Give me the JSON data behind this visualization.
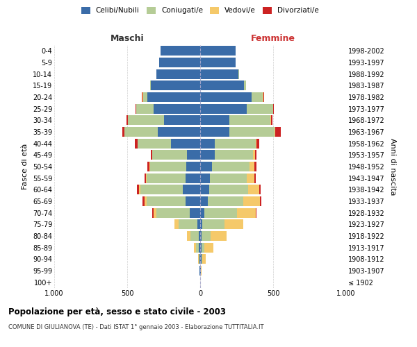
{
  "age_groups": [
    "100+",
    "95-99",
    "90-94",
    "85-89",
    "80-84",
    "75-79",
    "70-74",
    "65-69",
    "60-64",
    "55-59",
    "50-54",
    "45-49",
    "40-44",
    "35-39",
    "30-34",
    "25-29",
    "20-24",
    "15-19",
    "10-14",
    "5-9",
    "0-4"
  ],
  "birth_years": [
    "≤ 1902",
    "1903-1907",
    "1908-1912",
    "1913-1917",
    "1918-1922",
    "1923-1927",
    "1928-1932",
    "1933-1937",
    "1938-1942",
    "1943-1947",
    "1948-1952",
    "1953-1957",
    "1958-1962",
    "1963-1967",
    "1968-1972",
    "1973-1977",
    "1978-1982",
    "1983-1987",
    "1988-1992",
    "1993-1997",
    "1998-2002"
  ],
  "maschi": {
    "celibi": [
      2,
      3,
      5,
      8,
      10,
      20,
      70,
      100,
      120,
      100,
      95,
      90,
      200,
      290,
      250,
      320,
      360,
      340,
      300,
      280,
      270
    ],
    "coniugati": [
      0,
      2,
      5,
      20,
      55,
      130,
      230,
      265,
      290,
      265,
      250,
      240,
      230,
      230,
      245,
      120,
      30,
      5,
      0,
      0,
      0
    ],
    "vedovi": [
      0,
      0,
      5,
      15,
      25,
      25,
      20,
      15,
      10,
      8,
      5,
      0,
      0,
      0,
      0,
      0,
      5,
      0,
      0,
      0,
      0
    ],
    "divorziati": [
      0,
      0,
      0,
      0,
      0,
      0,
      10,
      15,
      15,
      10,
      10,
      10,
      20,
      15,
      8,
      5,
      5,
      0,
      0,
      0,
      0
    ]
  },
  "femmine": {
    "nubili": [
      2,
      5,
      10,
      10,
      10,
      15,
      30,
      50,
      60,
      65,
      80,
      100,
      100,
      200,
      200,
      320,
      350,
      300,
      260,
      245,
      245
    ],
    "coniugate": [
      0,
      0,
      5,
      20,
      60,
      150,
      220,
      245,
      270,
      255,
      260,
      260,
      280,
      310,
      280,
      180,
      80,
      15,
      5,
      0,
      0
    ],
    "vedove": [
      0,
      5,
      25,
      60,
      110,
      130,
      130,
      115,
      75,
      50,
      30,
      15,
      5,
      5,
      5,
      0,
      5,
      0,
      0,
      0,
      0
    ],
    "divorziate": [
      0,
      0,
      0,
      0,
      0,
      0,
      5,
      10,
      10,
      10,
      15,
      10,
      20,
      35,
      10,
      5,
      5,
      0,
      0,
      0,
      0
    ]
  },
  "colors": {
    "celibi": "#3a6ca8",
    "coniugati": "#b5cc96",
    "vedovi": "#f5c96a",
    "divorziati": "#cc2222"
  },
  "title": "Popolazione per età, sesso e stato civile - 2003",
  "subtitle": "COMUNE DI GIULIANOVA (TE) - Dati ISTAT 1° gennaio 2003 - Elaborazione TUTTITALIA.IT",
  "xlabel_left": "Maschi",
  "xlabel_right": "Femmine",
  "ylabel_left": "Fasce di età",
  "ylabel_right": "Anni di nascita",
  "xlim": 1000,
  "background_color": "#ffffff",
  "grid_color": "#cccccc"
}
